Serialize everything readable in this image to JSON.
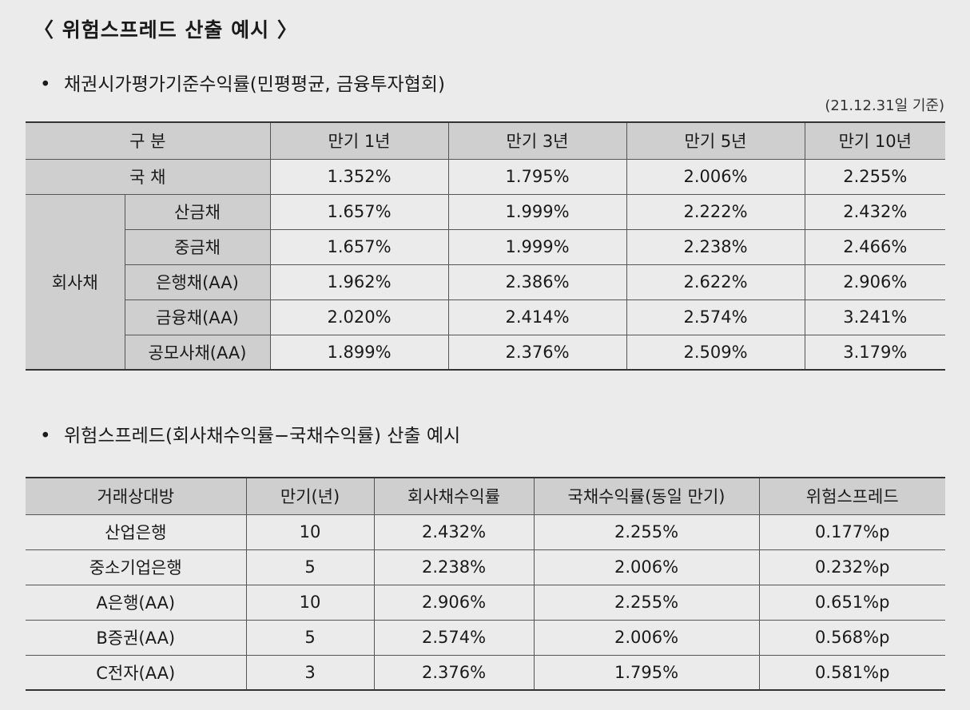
{
  "title": "〈 위험스프레드 산출 예시 〉",
  "section1": {
    "bullet": "•",
    "heading": "채권시가평가기준수익률(민평평균, 금융투자협회)",
    "note": "(21.12.31일 기준)",
    "headers": [
      "구 분",
      "만기 1년",
      "만기 3년",
      "만기 5년",
      "만기 10년"
    ],
    "gov_row": {
      "label": "국 채",
      "values": [
        "1.352%",
        "1.795%",
        "2.006%",
        "2.255%"
      ]
    },
    "corp_group_label": "회사채",
    "corp_rows": [
      {
        "label": "산금채",
        "values": [
          "1.657%",
          "1.999%",
          "2.222%",
          "2.432%"
        ]
      },
      {
        "label": "중금채",
        "values": [
          "1.657%",
          "1.999%",
          "2.238%",
          "2.466%"
        ]
      },
      {
        "label": "은행채(AA)",
        "values": [
          "1.962%",
          "2.386%",
          "2.622%",
          "2.906%"
        ]
      },
      {
        "label": "금융채(AA)",
        "values": [
          "2.020%",
          "2.414%",
          "2.574%",
          "3.241%"
        ]
      },
      {
        "label": "공모사채(AA)",
        "values": [
          "1.899%",
          "2.376%",
          "2.509%",
          "3.179%"
        ]
      }
    ]
  },
  "section2": {
    "bullet": "•",
    "heading": "위험스프레드(회사채수익률−국채수익률) 산출 예시",
    "headers": [
      "거래상대방",
      "만기(년)",
      "회사채수익률",
      "국채수익률(동일 만기)",
      "위험스프레드"
    ],
    "rows": [
      [
        "산업은행",
        "10",
        "2.432%",
        "2.255%",
        "0.177%p"
      ],
      [
        "중소기업은행",
        "5",
        "2.238%",
        "2.006%",
        "0.232%p"
      ],
      [
        "A은행(AA)",
        "10",
        "2.906%",
        "2.255%",
        "0.651%p"
      ],
      [
        "B증권(AA)",
        "5",
        "2.574%",
        "2.006%",
        "0.568%p"
      ],
      [
        "C전자(AA)",
        "3",
        "2.376%",
        "1.795%",
        "0.581%p"
      ]
    ]
  }
}
